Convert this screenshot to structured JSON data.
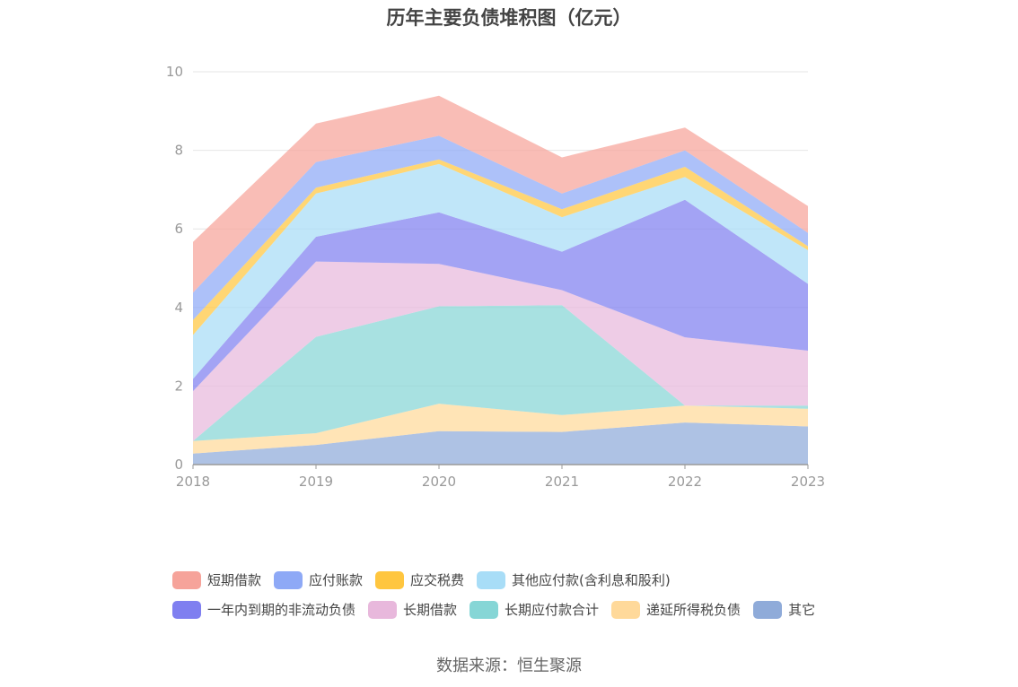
{
  "chart_data": {
    "type": "area",
    "stacked": true,
    "title": "历年主要负债堆积图（亿元）",
    "x": [
      "2018",
      "2019",
      "2020",
      "2021",
      "2022",
      "2023"
    ],
    "ylim": [
      0,
      10
    ],
    "yticks": [
      "0",
      "2",
      "4",
      "6",
      "8",
      "10"
    ],
    "grid": true,
    "legend_position": "bottom",
    "series": [
      {
        "name": "其它",
        "color": "#8fabd9",
        "values": [
          0.28,
          0.5,
          0.85,
          0.83,
          1.07,
          0.97
        ]
      },
      {
        "name": "递延所得税负债",
        "color": "#ffd99a",
        "values": [
          0.32,
          0.3,
          0.7,
          0.43,
          0.43,
          0.45
        ]
      },
      {
        "name": "长期应付款合计",
        "color": "#86d6d6",
        "values": [
          0.0,
          2.45,
          2.48,
          2.8,
          0.0,
          0.08
        ]
      },
      {
        "name": "长期借款",
        "color": "#e8b8dc",
        "values": [
          1.27,
          1.92,
          1.08,
          0.38,
          1.74,
          1.4
        ]
      },
      {
        "name": "一年内到期的非流动负债",
        "color": "#7f7ff0",
        "values": [
          0.31,
          0.63,
          1.31,
          0.98,
          3.5,
          1.7
        ]
      },
      {
        "name": "其他应付款(含利息和股利)",
        "color": "#a8ddf7",
        "values": [
          1.12,
          1.1,
          1.23,
          0.88,
          0.58,
          0.86
        ]
      },
      {
        "name": "应交税费",
        "color": "#ffc63f",
        "values": [
          0.38,
          0.15,
          0.12,
          0.2,
          0.26,
          0.1
        ]
      },
      {
        "name": "应付账款",
        "color": "#8ea9f6",
        "values": [
          0.7,
          0.65,
          0.6,
          0.4,
          0.42,
          0.34
        ]
      },
      {
        "name": "短期借款",
        "color": "#f6a39a",
        "values": [
          1.29,
          0.98,
          1.02,
          0.92,
          0.58,
          0.68
        ]
      }
    ]
  },
  "legend_rows": [
    [
      "短期借款",
      "应付账款",
      "应交税费",
      "其他应付款(含利息和股利)"
    ],
    [
      "一年内到期的非流动负债",
      "长期借款",
      "长期应付款合计",
      "递延所得税负债",
      "其它"
    ]
  ],
  "source": "数据来源：恒生聚源"
}
